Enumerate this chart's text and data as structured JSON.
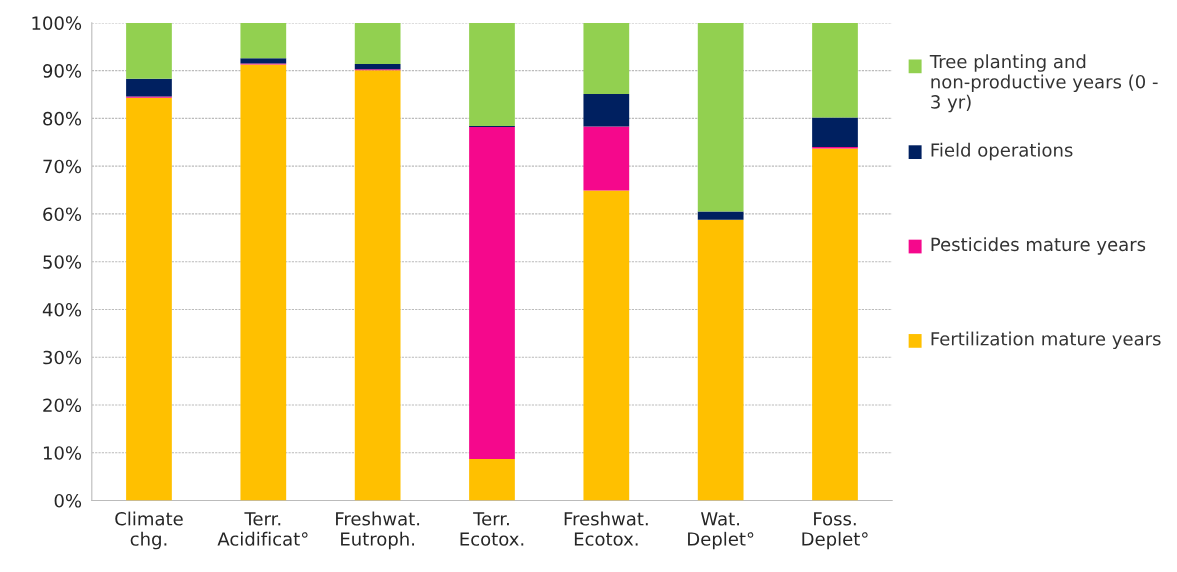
{
  "chart_data": {
    "type": "bar",
    "stacked": true,
    "categories": [
      "Climate\nchg.",
      "Terr.\nAcidificat°",
      "Freshwat.\nEutroph.",
      "Terr.\nEcotox.",
      "Freshwat.\nEcotox.",
      "Wat.\nDeplet°",
      "Foss.\nDeplet°"
    ],
    "series": [
      {
        "name": "Fertilization mature years",
        "color": "#ffc000",
        "values": [
          84.3,
          91.3,
          90.1,
          8.7,
          64.9,
          58.8,
          73.7
        ]
      },
      {
        "name": "Pesticides mature years",
        "color": "#f5088c",
        "values": [
          0.3,
          0.2,
          0.2,
          69.5,
          13.4,
          0,
          0.3
        ]
      },
      {
        "name": "Field operations",
        "color": "#002060",
        "values": [
          3.7,
          1.1,
          1.1,
          0.2,
          6.8,
          1.7,
          6.2
        ]
      },
      {
        "name": "Tree planting and non-productive years (0 - 3 yr)",
        "color": "#92d050",
        "values": [
          11.7,
          7.4,
          8.6,
          21.6,
          14.9,
          39.5,
          19.8
        ]
      }
    ],
    "ylim": [
      0,
      100
    ],
    "yticks": [
      {
        "value": 0,
        "label": "0%"
      },
      {
        "value": 10,
        "label": "10%"
      },
      {
        "value": 20,
        "label": "20%"
      },
      {
        "value": 30,
        "label": "30%"
      },
      {
        "value": 40,
        "label": "40%"
      },
      {
        "value": 50,
        "label": "50%"
      },
      {
        "value": 60,
        "label": "60%"
      },
      {
        "value": 70,
        "label": "70%"
      },
      {
        "value": 80,
        "label": "80%"
      },
      {
        "value": 90,
        "label": "90%"
      },
      {
        "value": 100,
        "label": "100%"
      }
    ],
    "grid": "y",
    "legend": "right"
  }
}
